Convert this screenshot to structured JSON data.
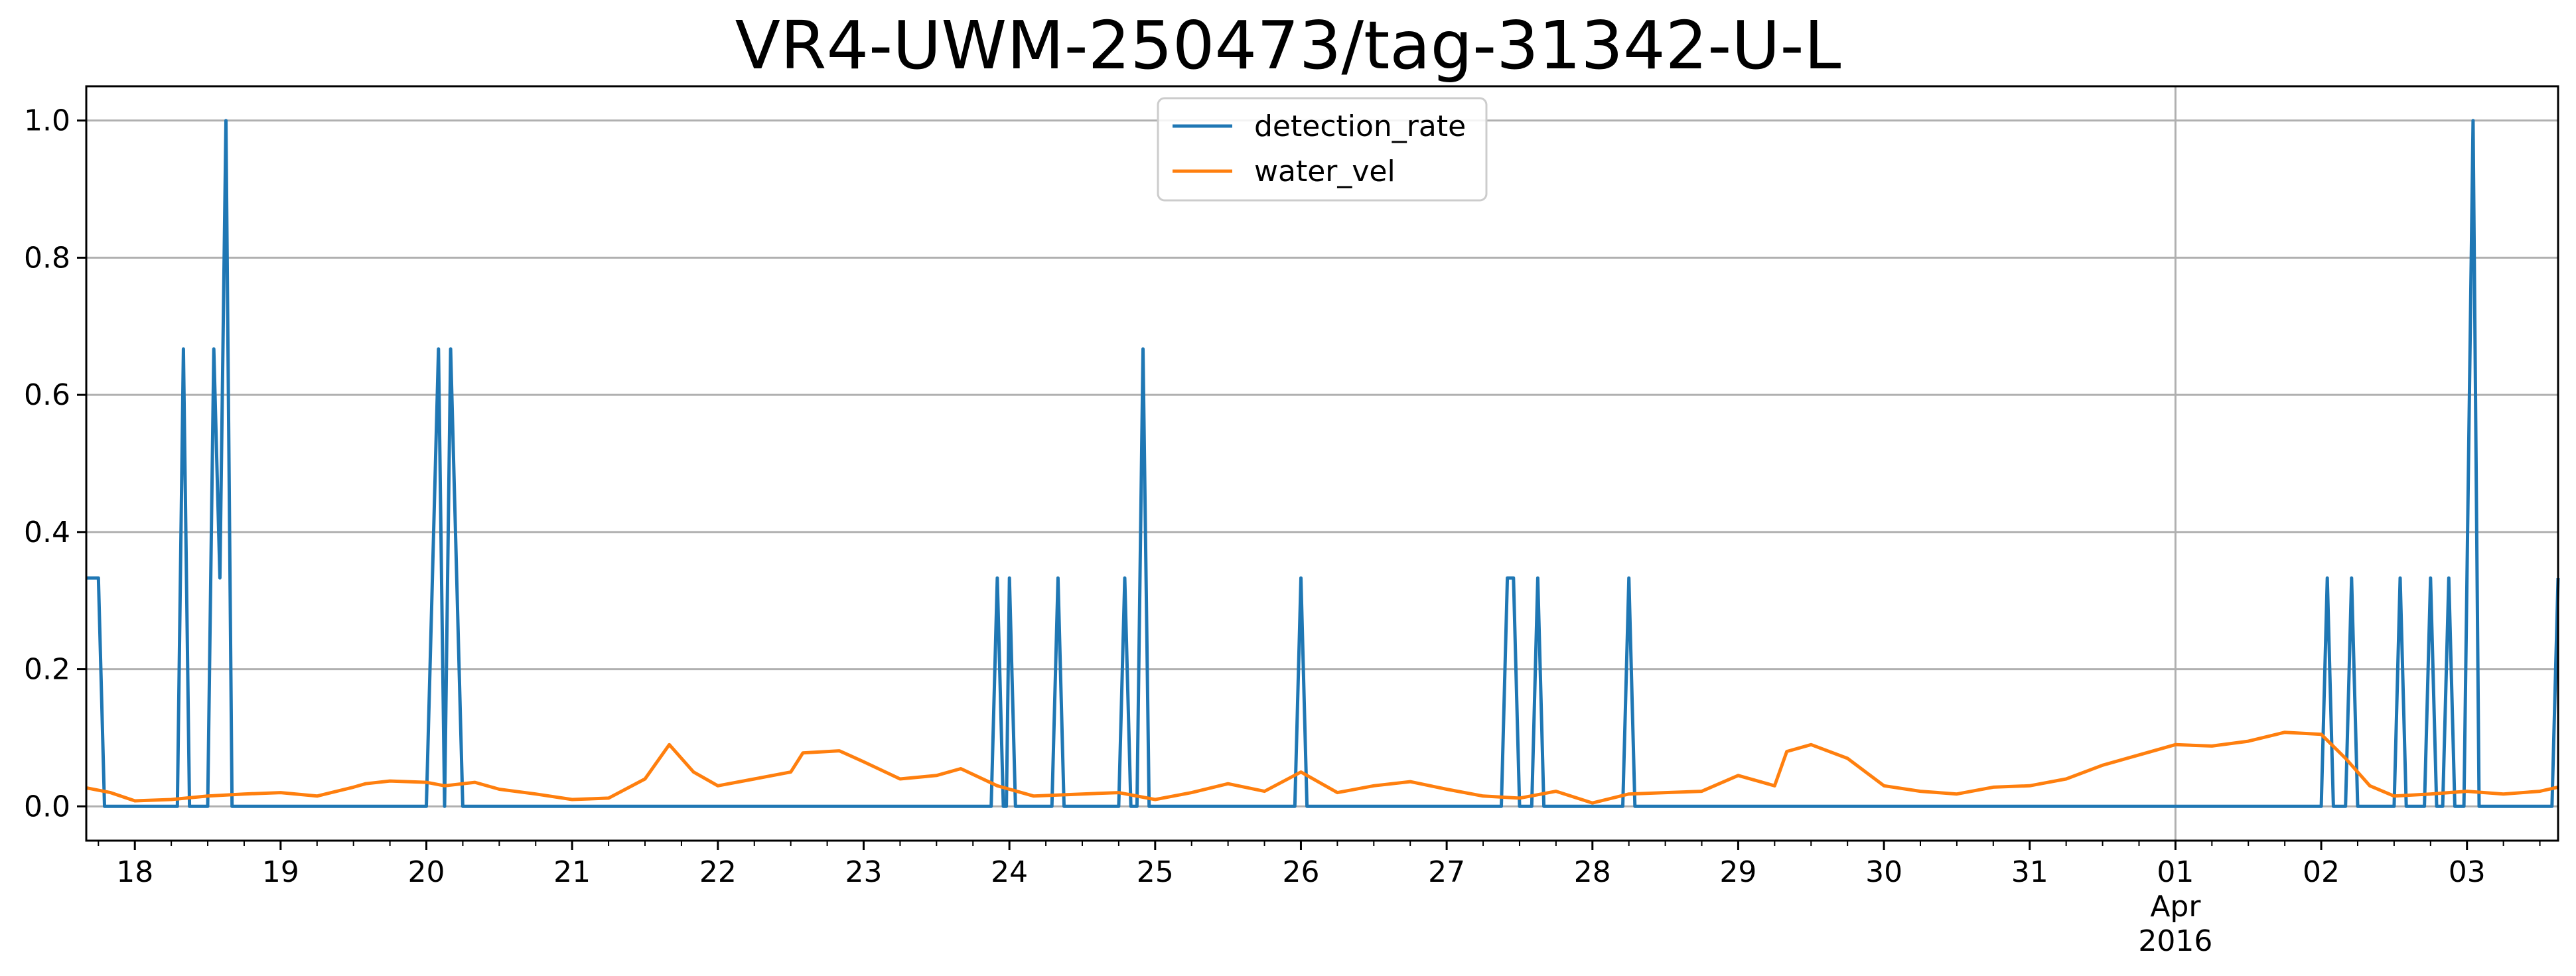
{
  "chart_data": {
    "type": "line",
    "title": "VR4-UWM-250473/tag-31342-U-L",
    "xlabel": "",
    "ylabel": "",
    "x_range": [
      "2016-03-17T16:00",
      "2016-04-03T15:00"
    ],
    "ylim": [
      -0.05,
      1.05
    ],
    "grid": "y and on 2016-04-01",
    "legend_placement": "upper center",
    "x_ticks": [
      {
        "date": "2016-03-18",
        "label": "18"
      },
      {
        "date": "2016-03-19",
        "label": "19"
      },
      {
        "date": "2016-03-20",
        "label": "20"
      },
      {
        "date": "2016-03-21",
        "label": "21"
      },
      {
        "date": "2016-03-22",
        "label": "22"
      },
      {
        "date": "2016-03-23",
        "label": "23"
      },
      {
        "date": "2016-03-24",
        "label": "24"
      },
      {
        "date": "2016-03-25",
        "label": "25"
      },
      {
        "date": "2016-03-26",
        "label": "26"
      },
      {
        "date": "2016-03-27",
        "label": "27"
      },
      {
        "date": "2016-03-28",
        "label": "28"
      },
      {
        "date": "2016-03-29",
        "label": "29"
      },
      {
        "date": "2016-03-30",
        "label": "30"
      },
      {
        "date": "2016-03-31",
        "label": "31"
      },
      {
        "date": "2016-04-01",
        "label": "01",
        "label2": "Apr",
        "label3": "2016"
      },
      {
        "date": "2016-04-02",
        "label": "02"
      },
      {
        "date": "2016-04-03",
        "label": "03"
      }
    ],
    "y_ticks": [
      {
        "value": 0.0,
        "label": "0.0"
      },
      {
        "value": 0.2,
        "label": "0.2"
      },
      {
        "value": 0.4,
        "label": "0.4"
      },
      {
        "value": 0.6,
        "label": "0.6"
      },
      {
        "value": 0.8,
        "label": "0.8"
      },
      {
        "value": 1.0,
        "label": "1.0"
      }
    ],
    "series": [
      {
        "name": "detection_rate",
        "color": "#1f77b4",
        "points": [
          [
            "2016-03-17T16:00",
            0.333
          ],
          [
            "2016-03-17T18:00",
            0.333
          ],
          [
            "2016-03-17T19:00",
            0.0
          ],
          [
            "2016-03-18T07:00",
            0.0
          ],
          [
            "2016-03-18T08:00",
            0.667
          ],
          [
            "2016-03-18T09:00",
            0.0
          ],
          [
            "2016-03-18T12:00",
            0.0
          ],
          [
            "2016-03-18T13:00",
            0.667
          ],
          [
            "2016-03-18T14:00",
            0.333
          ],
          [
            "2016-03-18T15:00",
            1.0
          ],
          [
            "2016-03-18T16:00",
            0.0
          ],
          [
            "2016-03-20T00:00",
            0.0
          ],
          [
            "2016-03-20T02:00",
            0.667
          ],
          [
            "2016-03-20T03:00",
            0.0
          ],
          [
            "2016-03-20T04:00",
            0.667
          ],
          [
            "2016-03-20T06:00",
            0.0
          ],
          [
            "2016-03-23T21:00",
            0.0
          ],
          [
            "2016-03-23T22:00",
            0.333
          ],
          [
            "2016-03-23T23:00",
            0.0
          ],
          [
            "2016-03-23T23:30",
            0.0
          ],
          [
            "2016-03-24T00:00",
            0.333
          ],
          [
            "2016-03-24T01:00",
            0.0
          ],
          [
            "2016-03-24T07:00",
            0.0
          ],
          [
            "2016-03-24T08:00",
            0.333
          ],
          [
            "2016-03-24T09:00",
            0.0
          ],
          [
            "2016-03-24T18:00",
            0.0
          ],
          [
            "2016-03-24T19:00",
            0.333
          ],
          [
            "2016-03-24T20:00",
            0.0
          ],
          [
            "2016-03-24T21:00",
            0.0
          ],
          [
            "2016-03-24T22:00",
            0.667
          ],
          [
            "2016-03-24T23:00",
            0.0
          ],
          [
            "2016-03-25T23:00",
            0.0
          ],
          [
            "2016-03-26T00:00",
            0.333
          ],
          [
            "2016-03-26T01:00",
            0.0
          ],
          [
            "2016-03-27T09:00",
            0.0
          ],
          [
            "2016-03-27T10:00",
            0.333
          ],
          [
            "2016-03-27T11:00",
            0.333
          ],
          [
            "2016-03-27T12:00",
            0.0
          ],
          [
            "2016-03-27T14:00",
            0.0
          ],
          [
            "2016-03-27T15:00",
            0.333
          ],
          [
            "2016-03-27T16:00",
            0.0
          ],
          [
            "2016-03-28T05:00",
            0.0
          ],
          [
            "2016-03-28T06:00",
            0.333
          ],
          [
            "2016-03-28T07:00",
            0.0
          ],
          [
            "2016-04-02T00:00",
            0.0
          ],
          [
            "2016-04-02T01:00",
            0.333
          ],
          [
            "2016-04-02T02:00",
            0.0
          ],
          [
            "2016-04-02T04:00",
            0.0
          ],
          [
            "2016-04-02T05:00",
            0.333
          ],
          [
            "2016-04-02T06:00",
            0.0
          ],
          [
            "2016-04-02T12:00",
            0.0
          ],
          [
            "2016-04-02T13:00",
            0.333
          ],
          [
            "2016-04-02T14:00",
            0.0
          ],
          [
            "2016-04-02T17:00",
            0.0
          ],
          [
            "2016-04-02T18:00",
            0.333
          ],
          [
            "2016-04-02T19:00",
            0.0
          ],
          [
            "2016-04-02T20:00",
            0.0
          ],
          [
            "2016-04-02T21:00",
            0.333
          ],
          [
            "2016-04-02T22:00",
            0.0
          ],
          [
            "2016-04-02T23:30",
            0.0
          ],
          [
            "2016-04-03T01:00",
            1.0
          ],
          [
            "2016-04-03T02:00",
            0.0
          ],
          [
            "2016-04-03T14:00",
            0.0
          ],
          [
            "2016-04-03T15:00",
            0.333
          ]
        ]
      },
      {
        "name": "water_vel",
        "color": "#ff7f0e",
        "points": [
          [
            "2016-03-17T16:00",
            0.027
          ],
          [
            "2016-03-17T20:00",
            0.02
          ],
          [
            "2016-03-18T00:00",
            0.008
          ],
          [
            "2016-03-18T06:00",
            0.01
          ],
          [
            "2016-03-18T12:00",
            0.015
          ],
          [
            "2016-03-18T18:00",
            0.018
          ],
          [
            "2016-03-19T00:00",
            0.02
          ],
          [
            "2016-03-19T06:00",
            0.015
          ],
          [
            "2016-03-19T12:00",
            0.028
          ],
          [
            "2016-03-19T14:00",
            0.033
          ],
          [
            "2016-03-19T18:00",
            0.037
          ],
          [
            "2016-03-20T00:00",
            0.035
          ],
          [
            "2016-03-20T03:00",
            0.03
          ],
          [
            "2016-03-20T08:00",
            0.035
          ],
          [
            "2016-03-20T12:00",
            0.025
          ],
          [
            "2016-03-20T18:00",
            0.018
          ],
          [
            "2016-03-21T00:00",
            0.01
          ],
          [
            "2016-03-21T06:00",
            0.012
          ],
          [
            "2016-03-21T12:00",
            0.04
          ],
          [
            "2016-03-21T16:00",
            0.09
          ],
          [
            "2016-03-21T20:00",
            0.05
          ],
          [
            "2016-03-22T00:00",
            0.03
          ],
          [
            "2016-03-22T06:00",
            0.04
          ],
          [
            "2016-03-22T12:00",
            0.05
          ],
          [
            "2016-03-22T14:00",
            0.078
          ],
          [
            "2016-03-22T20:00",
            0.081
          ],
          [
            "2016-03-23T00:00",
            0.065
          ],
          [
            "2016-03-23T06:00",
            0.04
          ],
          [
            "2016-03-23T12:00",
            0.045
          ],
          [
            "2016-03-23T16:00",
            0.055
          ],
          [
            "2016-03-23T22:00",
            0.03
          ],
          [
            "2016-03-24T04:00",
            0.015
          ],
          [
            "2016-03-24T12:00",
            0.018
          ],
          [
            "2016-03-24T18:00",
            0.02
          ],
          [
            "2016-03-25T00:00",
            0.01
          ],
          [
            "2016-03-25T06:00",
            0.02
          ],
          [
            "2016-03-25T12:00",
            0.033
          ],
          [
            "2016-03-25T18:00",
            0.022
          ],
          [
            "2016-03-26T00:00",
            0.05
          ],
          [
            "2016-03-26T06:00",
            0.02
          ],
          [
            "2016-03-26T12:00",
            0.03
          ],
          [
            "2016-03-26T18:00",
            0.036
          ],
          [
            "2016-03-27T00:00",
            0.025
          ],
          [
            "2016-03-27T06:00",
            0.015
          ],
          [
            "2016-03-27T12:00",
            0.012
          ],
          [
            "2016-03-27T18:00",
            0.022
          ],
          [
            "2016-03-28T00:00",
            0.005
          ],
          [
            "2016-03-28T06:00",
            0.018
          ],
          [
            "2016-03-28T12:00",
            0.02
          ],
          [
            "2016-03-28T18:00",
            0.022
          ],
          [
            "2016-03-29T00:00",
            0.045
          ],
          [
            "2016-03-29T06:00",
            0.03
          ],
          [
            "2016-03-29T08:00",
            0.08
          ],
          [
            "2016-03-29T12:00",
            0.09
          ],
          [
            "2016-03-29T18:00",
            0.07
          ],
          [
            "2016-03-30T00:00",
            0.03
          ],
          [
            "2016-03-30T06:00",
            0.022
          ],
          [
            "2016-03-30T12:00",
            0.018
          ],
          [
            "2016-03-30T18:00",
            0.028
          ],
          [
            "2016-03-31T00:00",
            0.03
          ],
          [
            "2016-03-31T06:00",
            0.04
          ],
          [
            "2016-03-31T12:00",
            0.06
          ],
          [
            "2016-03-31T18:00",
            0.075
          ],
          [
            "2016-04-01T00:00",
            0.09
          ],
          [
            "2016-04-01T06:00",
            0.088
          ],
          [
            "2016-04-01T12:00",
            0.095
          ],
          [
            "2016-04-01T18:00",
            0.108
          ],
          [
            "2016-04-02T00:00",
            0.105
          ],
          [
            "2016-04-02T04:00",
            0.07
          ],
          [
            "2016-04-02T08:00",
            0.03
          ],
          [
            "2016-04-02T12:00",
            0.015
          ],
          [
            "2016-04-02T18:00",
            0.018
          ],
          [
            "2016-04-03T00:00",
            0.022
          ],
          [
            "2016-04-03T06:00",
            0.018
          ],
          [
            "2016-04-03T12:00",
            0.022
          ],
          [
            "2016-04-03T15:00",
            0.028
          ]
        ]
      }
    ]
  }
}
